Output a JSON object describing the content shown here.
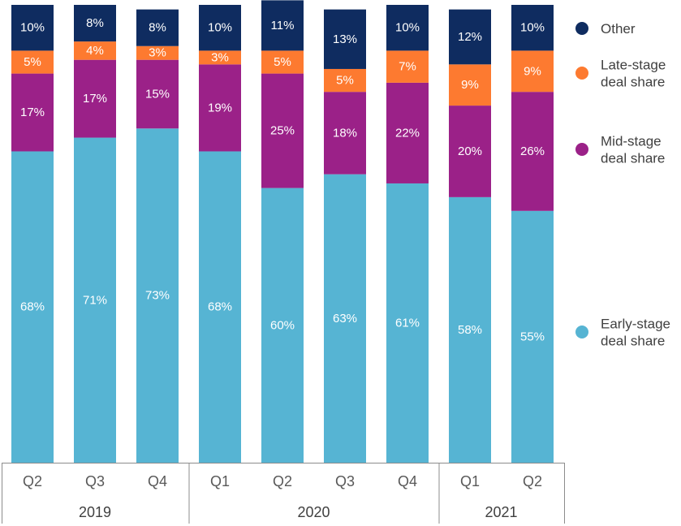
{
  "chart_data": {
    "type": "bar",
    "stacked": true,
    "percent": true,
    "title": "",
    "xlabel": "",
    "ylabel": "",
    "ylim": [
      0,
      100
    ],
    "grid": false,
    "legend_position": "right",
    "categories": [
      "Q2",
      "Q3",
      "Q4",
      "Q1",
      "Q2",
      "Q3",
      "Q4",
      "Q1",
      "Q2"
    ],
    "groups": [
      {
        "label": "2019",
        "count": 3
      },
      {
        "label": "2020",
        "count": 4
      },
      {
        "label": "2021",
        "count": 2
      }
    ],
    "series": [
      {
        "name": "Early-stage deal share",
        "legend_lines": [
          "Early-stage",
          "deal share"
        ],
        "color": "#56b4d3",
        "values": [
          68,
          71,
          73,
          68,
          60,
          63,
          61,
          58,
          55
        ]
      },
      {
        "name": "Mid-stage deal share",
        "legend_lines": [
          "Mid-stage",
          "deal share"
        ],
        "color": "#9b2188",
        "values": [
          17,
          17,
          15,
          19,
          25,
          18,
          22,
          20,
          26
        ]
      },
      {
        "name": "Late-stage deal share",
        "legend_lines": [
          "Late-stage",
          "deal share"
        ],
        "color": "#fd7a30",
        "values": [
          5,
          4,
          3,
          3,
          5,
          5,
          7,
          9,
          9
        ]
      },
      {
        "name": "Other",
        "legend_lines": [
          "Other"
        ],
        "color": "#0f2c60",
        "values": [
          10,
          8,
          8,
          10,
          11,
          13,
          10,
          12,
          10
        ]
      }
    ],
    "value_suffix": "%"
  }
}
